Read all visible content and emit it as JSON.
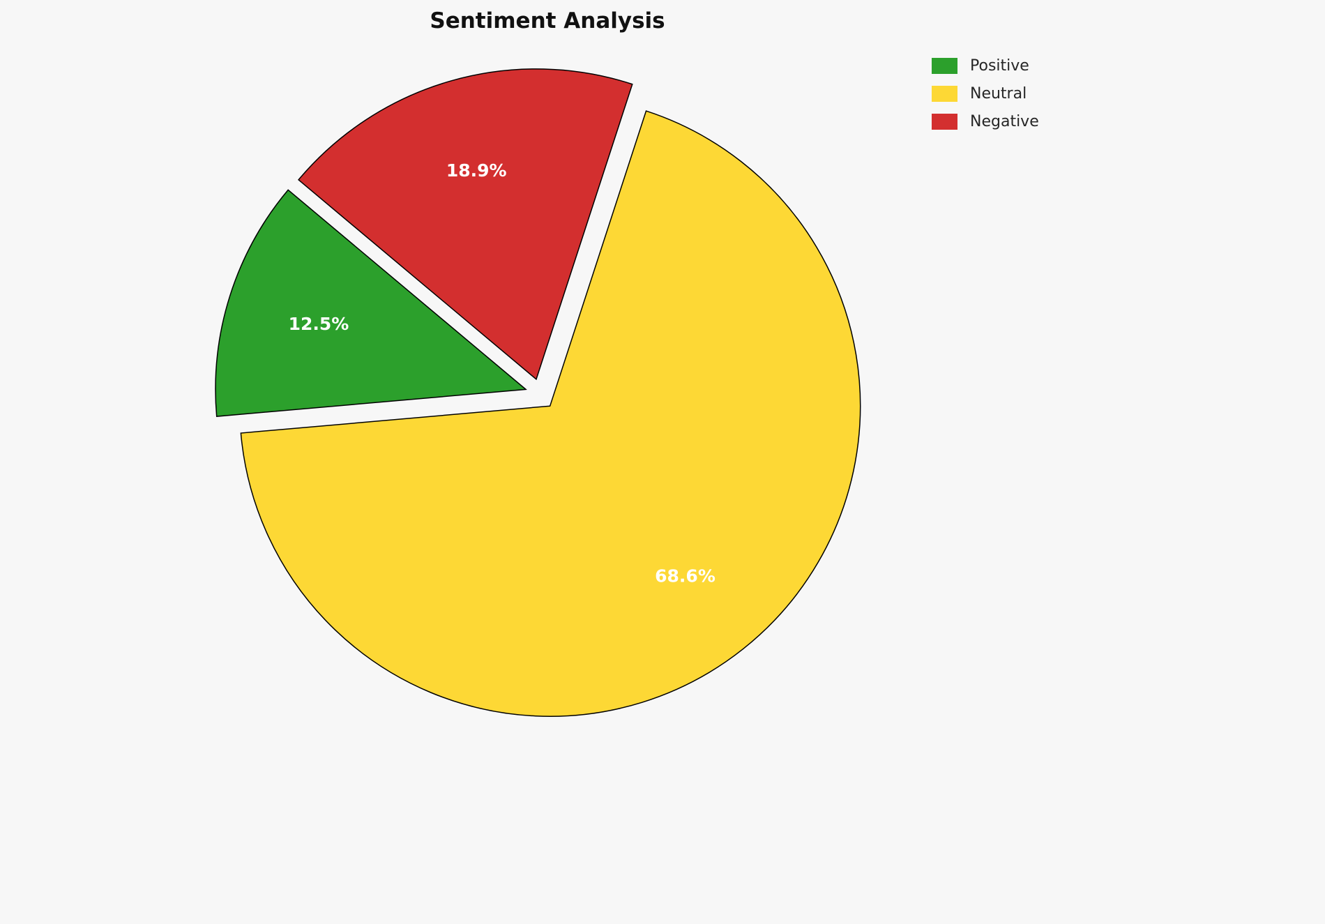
{
  "chart_data": {
    "type": "pie",
    "title": "Sentiment Analysis",
    "categories": [
      "Positive",
      "Neutral",
      "Negative"
    ],
    "values": [
      12.5,
      68.6,
      18.9
    ],
    "labels": [
      "12.5%",
      "68.6%",
      "18.9%"
    ],
    "colors": [
      "#2CA02C",
      "#FDD835",
      "#D32F2F"
    ],
    "label_color": "#FFFFFF",
    "slice_border_color": "#000000",
    "background_color": "#F7F7F7",
    "legend_position": "upper right",
    "start_angle": 185,
    "draw_order": [
      "Neutral",
      "Negative",
      "Positive"
    ],
    "explode": 0.05
  }
}
